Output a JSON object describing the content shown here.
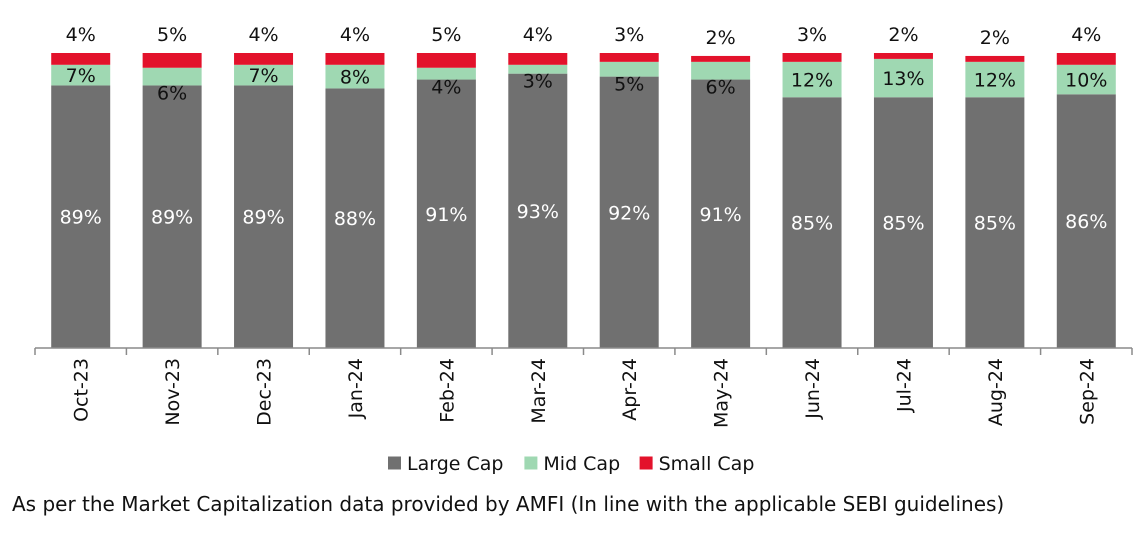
{
  "chart_data": {
    "type": "bar",
    "stacked": true,
    "categories": [
      "Oct-23",
      "Nov-23",
      "Dec-23",
      "Jan-24",
      "Feb-24",
      "Mar-24",
      "Apr-24",
      "May-24",
      "Jun-24",
      "Jul-24",
      "Aug-24",
      "Sep-24"
    ],
    "series": [
      {
        "name": "Large Cap",
        "color": "#707070",
        "values": [
          89,
          89,
          89,
          88,
          91,
          93,
          92,
          91,
          85,
          85,
          85,
          86
        ],
        "labels": [
          "89%",
          "89%",
          "89%",
          "88%",
          "91%",
          "93%",
          "92%",
          "91%",
          "85%",
          "85%",
          "85%",
          "86%"
        ]
      },
      {
        "name": "Mid Cap",
        "color": "#9fd8b2",
        "values": [
          7,
          6,
          7,
          8,
          4,
          3,
          5,
          6,
          12,
          13,
          12,
          10
        ],
        "labels": [
          "7%",
          "6%",
          "7%",
          "8%",
          "4%",
          "3%",
          "5%",
          "6%",
          "12%",
          "13%",
          "12%",
          "10%"
        ]
      },
      {
        "name": "Small Cap",
        "color": "#e3122b",
        "values": [
          4,
          5,
          4,
          4,
          5,
          4,
          3,
          2,
          3,
          2,
          2,
          4
        ],
        "labels": [
          "4%",
          "5%",
          "4%",
          "4%",
          "5%",
          "4%",
          "3%",
          "2%",
          "3%",
          "2%",
          "2%",
          "4%"
        ]
      }
    ],
    "ylim": [
      0,
      100
    ],
    "legend_position": "bottom",
    "grid": false
  },
  "footnote": "As per the Market Capitalization data provided by AMFI (In line with the applicable SEBI guidelines)"
}
